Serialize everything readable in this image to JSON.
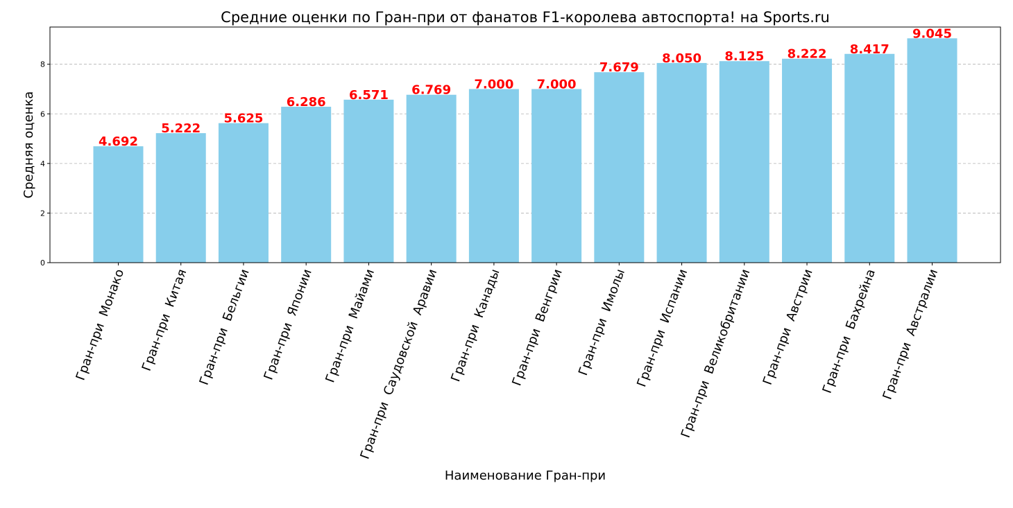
{
  "colors": {
    "bar": "#87ceeb",
    "value_label": "#ff0000",
    "grid": "#b0b0b0",
    "background": "#ffffff"
  },
  "chart_data": {
    "type": "bar",
    "title": "Средние оценки по Гран-при от фанатов F1-королева автоспорта! на Sports.ru",
    "xlabel": "Наименование Гран-при",
    "ylabel": "Средняя оценка",
    "ylim": [
      0,
      9.5
    ],
    "yticks": [
      0,
      2,
      4,
      6,
      8
    ],
    "grid": "y-dashed",
    "categories": [
      "Гран-при  Монако",
      "Гран-при  Китая",
      "Гран-при  Бельгии",
      "Гран-при  Японии",
      "Гран-при  Майами",
      "Гран-при  Саудовской  Аравии",
      "Гран-при  Канады",
      "Гран-при  Венгрии",
      "Гран-при  Имолы",
      "Гран-при  Испании",
      "Гран-при  Великобритании",
      "Гран-при  Австрии",
      "Гран-при  Бахрейна",
      "Гран-при  Австралии"
    ],
    "values": [
      4.692,
      5.222,
      5.625,
      6.286,
      6.571,
      6.769,
      7.0,
      7.0,
      7.679,
      8.05,
      8.125,
      8.222,
      8.417,
      9.045
    ],
    "value_labels": [
      "4.692",
      "5.222",
      "5.625",
      "6.286",
      "6.571",
      "6.769",
      "7.000",
      "7.000",
      "7.679",
      "8.050",
      "8.125",
      "8.222",
      "8.417",
      "9.045"
    ]
  }
}
